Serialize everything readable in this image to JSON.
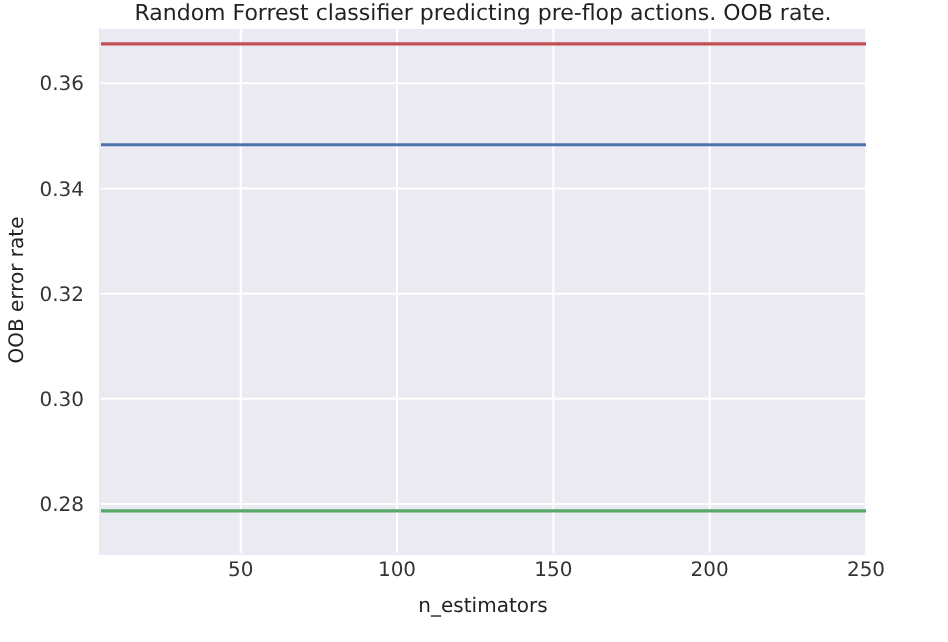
{
  "chart_data": {
    "type": "line",
    "title": "Random Forrest classifier predicting pre-flop actions. OOB rate.",
    "xlabel": "n_estimators",
    "ylabel": "OOB error rate",
    "x": [
      5,
      250
    ],
    "series": [
      {
        "color": "#c44e52",
        "values": [
          0.3675,
          0.3675
        ]
      },
      {
        "color": "#4c72b0",
        "values": [
          0.3483,
          0.3483
        ]
      },
      {
        "color": "#55a868",
        "values": [
          0.2787,
          0.2787
        ]
      }
    ],
    "xlim": [
      5,
      250
    ],
    "xticks": [
      50,
      100,
      150,
      200,
      250
    ],
    "ylim": [
      0.2705,
      0.3705
    ],
    "yticks": [
      {
        "value": 0.28,
        "label": "0.28"
      },
      {
        "value": 0.3,
        "label": "0.30"
      },
      {
        "value": 0.32,
        "label": "0.32"
      },
      {
        "value": 0.34,
        "label": "0.34"
      },
      {
        "value": 0.36,
        "label": "0.36"
      }
    ],
    "grid": true,
    "marker": "none",
    "line_style": "solid"
  }
}
